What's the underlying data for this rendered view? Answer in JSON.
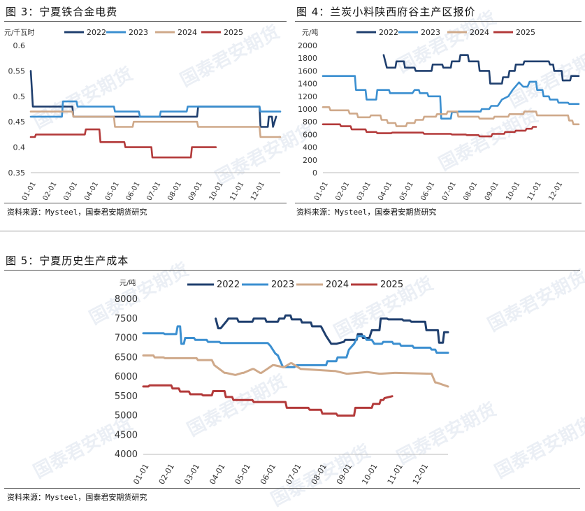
{
  "watermark": "国泰君安期货",
  "figures": [
    {
      "title": "图 3：宁夏铁合金电费",
      "source": "资料来源：Mysteel，国泰君安期货研究"
    },
    {
      "title": "图 4：兰炭小料陕西府谷主产区报价",
      "source": "资料来源：Mysteel，国泰君安期货研究"
    },
    {
      "title": "图 5：宁夏历史生产成本",
      "source": "资料来源：Mysteel，国泰君安期货研究"
    }
  ],
  "chart_data": [
    {
      "type": "line",
      "title": "宁夏铁合金电费",
      "ylabel": "元/千瓦时",
      "ylim": [
        0.35,
        0.6
      ],
      "yticks": [
        0.35,
        0.4,
        0.45,
        0.5,
        0.55,
        0.6
      ],
      "ytick_labels": [
        "0.35",
        "0.4",
        "0.45",
        "0.5",
        "0.55",
        "0.6"
      ],
      "xlim": [
        0,
        12
      ],
      "xticks": [
        "01-01",
        "02-01",
        "03-01",
        "04-01",
        "05-01",
        "06-01",
        "07-01",
        "08-01",
        "09-01",
        "10-01",
        "11-01",
        "12-01"
      ],
      "series": [
        {
          "name": "2022",
          "color": "#1f3f6e",
          "x": [
            0,
            0.03,
            0.1,
            0.2,
            2.0,
            2.05,
            8.0,
            8.05,
            11.0,
            11.05,
            11.4,
            11.45,
            11.6,
            11.65,
            11.8
          ],
          "y": [
            0.55,
            0.53,
            0.48,
            0.48,
            0.48,
            0.46,
            0.46,
            0.48,
            0.48,
            0.44,
            0.44,
            0.46,
            0.46,
            0.44,
            0.46
          ]
        },
        {
          "name": "2023",
          "color": "#3b8fd0",
          "x": [
            0,
            1.5,
            1.55,
            2.2,
            2.25,
            4.0,
            4.05,
            5.2,
            5.25,
            6.2,
            6.25,
            7.5,
            7.55,
            11.0,
            11.05,
            12.0
          ],
          "y": [
            0.46,
            0.46,
            0.49,
            0.49,
            0.48,
            0.48,
            0.47,
            0.47,
            0.46,
            0.46,
            0.47,
            0.47,
            0.48,
            0.48,
            0.47,
            0.47
          ]
        },
        {
          "name": "2024",
          "color": "#cfa98a",
          "x": [
            0,
            2.0,
            2.05,
            4.0,
            4.05,
            4.9,
            4.95,
            6.8,
            6.85,
            8.0,
            8.05,
            9.0,
            9.05,
            11.0,
            11.05,
            12.0
          ],
          "y": [
            0.47,
            0.47,
            0.46,
            0.46,
            0.44,
            0.44,
            0.45,
            0.45,
            0.45,
            0.45,
            0.44,
            0.44,
            0.44,
            0.44,
            0.42,
            0.42
          ]
        },
        {
          "name": "2025",
          "color": "#b33a3a",
          "x": [
            0,
            0.2,
            0.25,
            2.6,
            2.65,
            3.3,
            3.35,
            4.5,
            4.55,
            5.8,
            5.85,
            7.7,
            7.75,
            8.9
          ],
          "y": [
            0.42,
            0.42,
            0.425,
            0.425,
            0.435,
            0.435,
            0.41,
            0.41,
            0.4,
            0.4,
            0.38,
            0.38,
            0.4,
            0.4
          ]
        }
      ]
    },
    {
      "type": "line",
      "title": "兰炭小料陕西府谷主产区报价",
      "ylabel": "元/吨",
      "ylim": [
        0,
        2000
      ],
      "yticks": [
        0,
        200,
        400,
        600,
        800,
        1000,
        1200,
        1400,
        1600,
        1800,
        2000
      ],
      "ytick_labels": [
        "0",
        "200",
        "400",
        "600",
        "800",
        "1000",
        "1200",
        "1400",
        "1600",
        "1800",
        "2000"
      ],
      "xlim": [
        0,
        12
      ],
      "xticks": [
        "01-01",
        "02-01",
        "03-01",
        "04-01",
        "05-01",
        "06-01",
        "07-01",
        "08-01",
        "09-01",
        "10-01",
        "11-01",
        "12-01"
      ],
      "series": [
        {
          "name": "2022",
          "color": "#1f3f6e",
          "x": [
            2.85,
            3.0,
            3.05,
            3.4,
            3.45,
            3.8,
            3.85,
            4.3,
            4.35,
            5.1,
            5.15,
            5.6,
            5.65,
            6.0,
            6.05,
            6.4,
            6.45,
            6.8,
            6.85,
            7.3,
            7.35,
            7.8,
            7.85,
            8.0,
            8.05,
            8.4,
            8.45,
            8.7,
            8.75,
            9.0,
            9.05,
            9.4,
            9.45,
            10.6,
            10.65,
            10.8,
            10.85,
            11.2,
            11.25,
            11.6,
            11.65,
            12.0
          ],
          "y": [
            1850,
            1650,
            1650,
            1650,
            1750,
            1750,
            1650,
            1650,
            1600,
            1600,
            1700,
            1700,
            1650,
            1650,
            1750,
            1750,
            1850,
            1850,
            1750,
            1750,
            1600,
            1600,
            1400,
            1400,
            1400,
            1400,
            1500,
            1500,
            1600,
            1600,
            1700,
            1700,
            1750,
            1750,
            1700,
            1700,
            1600,
            1600,
            1450,
            1450,
            1520,
            1520
          ]
        },
        {
          "name": "2023",
          "color": "#3b8fd0",
          "x": [
            0,
            1.5,
            1.55,
            2.0,
            2.05,
            2.5,
            2.55,
            3.1,
            3.15,
            4.2,
            4.3,
            4.5,
            4.55,
            4.9,
            4.95,
            5.5,
            5.55,
            6.0,
            6.05,
            6.3,
            6.35,
            7.4,
            7.45,
            7.8,
            7.9,
            8.2,
            8.4,
            8.7,
            8.9,
            9.2,
            9.4,
            9.6,
            9.7,
            10.0,
            10.05,
            10.3,
            10.35,
            10.6,
            10.65,
            11.0,
            11.05,
            11.5,
            11.55,
            12.0
          ],
          "y": [
            1520,
            1520,
            1300,
            1300,
            1150,
            1150,
            1300,
            1300,
            1250,
            1250,
            1300,
            1300,
            1250,
            1250,
            1200,
            1200,
            850,
            850,
            950,
            950,
            960,
            960,
            1000,
            1000,
            1050,
            1050,
            1150,
            1200,
            1300,
            1420,
            1350,
            1350,
            1430,
            1430,
            1300,
            1300,
            1200,
            1200,
            1150,
            1150,
            1100,
            1100,
            1080,
            1080
          ]
        },
        {
          "name": "2024",
          "color": "#cfa98a",
          "x": [
            0,
            0.3,
            0.35,
            1.2,
            1.25,
            1.6,
            1.65,
            2.2,
            2.25,
            2.7,
            2.75,
            3.0,
            3.05,
            3.4,
            3.45,
            3.9,
            3.95,
            4.3,
            4.35,
            4.7,
            4.75,
            5.3,
            5.35,
            5.8,
            5.85,
            6.3,
            6.35,
            7.3,
            7.35,
            8.0,
            8.05,
            8.7,
            8.75,
            9.4,
            9.45,
            10.0,
            10.05,
            11.5,
            11.55,
            11.7,
            11.75,
            12.0
          ],
          "y": [
            1030,
            1030,
            980,
            980,
            930,
            930,
            870,
            870,
            900,
            900,
            830,
            830,
            780,
            780,
            730,
            730,
            780,
            780,
            830,
            830,
            880,
            880,
            920,
            920,
            960,
            960,
            880,
            880,
            850,
            850,
            880,
            880,
            920,
            920,
            960,
            960,
            900,
            900,
            820,
            820,
            760,
            760
          ]
        },
        {
          "name": "2025",
          "color": "#b33a3a",
          "x": [
            0,
            0.8,
            0.85,
            1.3,
            1.35,
            2.0,
            2.05,
            2.5,
            2.55,
            3.2,
            3.25,
            4.7,
            4.75,
            6.0,
            6.05,
            6.7,
            6.75,
            7.3,
            7.35,
            7.9,
            7.95,
            8.5,
            8.55,
            9.0,
            9.05,
            9.5,
            9.55,
            9.8,
            9.85,
            10.0
          ],
          "y": [
            760,
            760,
            730,
            730,
            680,
            680,
            640,
            640,
            620,
            620,
            630,
            630,
            610,
            610,
            600,
            600,
            590,
            590,
            570,
            570,
            610,
            610,
            640,
            640,
            660,
            660,
            690,
            690,
            720,
            720
          ]
        }
      ]
    },
    {
      "type": "line",
      "title": "宁夏历史生产成本",
      "ylabel": "元/吨",
      "ylim": [
        4000,
        8000
      ],
      "yticks": [
        4000,
        4500,
        5000,
        5500,
        6000,
        6500,
        7000,
        7500,
        8000
      ],
      "ytick_labels": [
        "4000",
        "4500",
        "5000",
        "5500",
        "6000",
        "6500",
        "7000",
        "7500",
        "8000"
      ],
      "xlim": [
        0,
        12
      ],
      "xticks": [
        "01-01",
        "02-01",
        "03-01",
        "04-01",
        "05-01",
        "06-01",
        "07-01",
        "08-01",
        "09-01",
        "10-01",
        "11-01",
        "12-01"
      ],
      "series": [
        {
          "name": "2022",
          "color": "#1f3f6e",
          "x": [
            2.85,
            2.95,
            3.05,
            3.3,
            3.35,
            3.7,
            3.75,
            4.3,
            4.35,
            4.8,
            4.85,
            5.3,
            5.35,
            5.55,
            5.6,
            5.8,
            5.85,
            6.2,
            6.25,
            6.6,
            6.65,
            7.0,
            7.2,
            7.4,
            7.6,
            7.9,
            7.95,
            8.4,
            8.45,
            8.6,
            8.65,
            8.9,
            9.0,
            9.3,
            9.35,
            9.6,
            9.65,
            10.2,
            10.25,
            10.5,
            10.55,
            11.1,
            11.15,
            11.6,
            11.65,
            11.8,
            11.85,
            12.0
          ],
          "y": [
            7500,
            7250,
            7250,
            7450,
            7500,
            7500,
            7420,
            7420,
            7500,
            7500,
            7420,
            7420,
            7500,
            7500,
            7580,
            7580,
            7480,
            7480,
            7400,
            7400,
            7300,
            7300,
            7050,
            6850,
            6850,
            6900,
            6950,
            6950,
            7100,
            7100,
            7000,
            7000,
            7200,
            7200,
            7500,
            7500,
            7480,
            7480,
            7450,
            7450,
            7420,
            7420,
            7200,
            7200,
            6880,
            6880,
            7150,
            7150
          ]
        },
        {
          "name": "2023",
          "color": "#3b8fd0",
          "x": [
            0,
            0.8,
            0.85,
            1.3,
            1.35,
            1.45,
            1.5,
            1.6,
            1.65,
            2.0,
            2.05,
            2.5,
            2.55,
            3.0,
            3.05,
            4.9,
            5.0,
            5.2,
            5.3,
            5.5,
            5.6,
            5.95,
            6.05,
            7.2,
            7.25,
            7.6,
            7.65,
            8.0,
            8.1,
            8.3,
            8.45,
            8.7,
            8.8,
            9.0,
            9.1,
            9.4,
            9.45,
            9.8,
            9.85,
            10.1,
            10.15,
            10.6,
            10.65,
            11.3,
            11.35,
            11.5,
            11.55,
            12.0
          ],
          "y": [
            7120,
            7120,
            7100,
            7100,
            7300,
            7300,
            6850,
            6850,
            7000,
            7000,
            6950,
            6950,
            6900,
            6900,
            6870,
            6870,
            6800,
            6600,
            6550,
            6250,
            6250,
            6250,
            6300,
            6300,
            6400,
            6400,
            6500,
            6500,
            6700,
            6850,
            7050,
            7050,
            6950,
            6950,
            6850,
            6850,
            6900,
            6900,
            6850,
            6850,
            6800,
            6800,
            6750,
            6750,
            6700,
            6700,
            6620,
            6620
          ]
        },
        {
          "name": "2024",
          "color": "#cfa98a",
          "x": [
            0,
            0.4,
            0.45,
            0.8,
            0.85,
            2.1,
            2.15,
            2.7,
            2.8,
            3.2,
            3.25,
            3.6,
            3.65,
            3.9,
            3.95,
            4.3,
            4.35,
            4.6,
            4.65,
            5.1,
            5.15,
            5.5,
            5.55,
            5.8,
            5.85,
            6.2,
            6.25,
            7.5,
            7.55,
            8.0,
            8.05,
            8.8,
            8.85,
            9.3,
            9.35,
            9.9,
            9.95,
            11.3,
            11.35,
            11.5,
            11.55,
            12.0
          ],
          "y": [
            6550,
            6550,
            6500,
            6500,
            6480,
            6480,
            6430,
            6430,
            6300,
            6100,
            6100,
            6050,
            6050,
            6100,
            6100,
            6200,
            6200,
            6100,
            6100,
            6300,
            6300,
            6250,
            6250,
            6350,
            6350,
            6200,
            6200,
            6150,
            6150,
            6080,
            6080,
            6120,
            6120,
            6080,
            6080,
            6100,
            6100,
            6080,
            6080,
            5850,
            5850,
            5750
          ]
        },
        {
          "name": "2025",
          "color": "#b33a3a",
          "x": [
            0,
            0.2,
            0.25,
            1.1,
            1.15,
            1.4,
            1.45,
            1.8,
            1.85,
            2.3,
            2.35,
            2.7,
            2.75,
            3.2,
            3.25,
            3.5,
            3.55,
            4.3,
            4.35,
            5.6,
            5.65,
            6.5,
            6.55,
            7.0,
            7.05,
            7.6,
            7.65,
            8.3,
            8.35,
            9.0,
            9.05,
            9.3,
            9.35,
            9.45,
            9.5,
            9.8
          ],
          "y": [
            5750,
            5750,
            5780,
            5780,
            5700,
            5700,
            5620,
            5620,
            5550,
            5550,
            5520,
            5520,
            5630,
            5630,
            5480,
            5480,
            5400,
            5400,
            5350,
            5350,
            5200,
            5200,
            5150,
            5150,
            5050,
            5050,
            5000,
            5000,
            5200,
            5200,
            5300,
            5300,
            5400,
            5400,
            5450,
            5500
          ]
        }
      ]
    }
  ]
}
